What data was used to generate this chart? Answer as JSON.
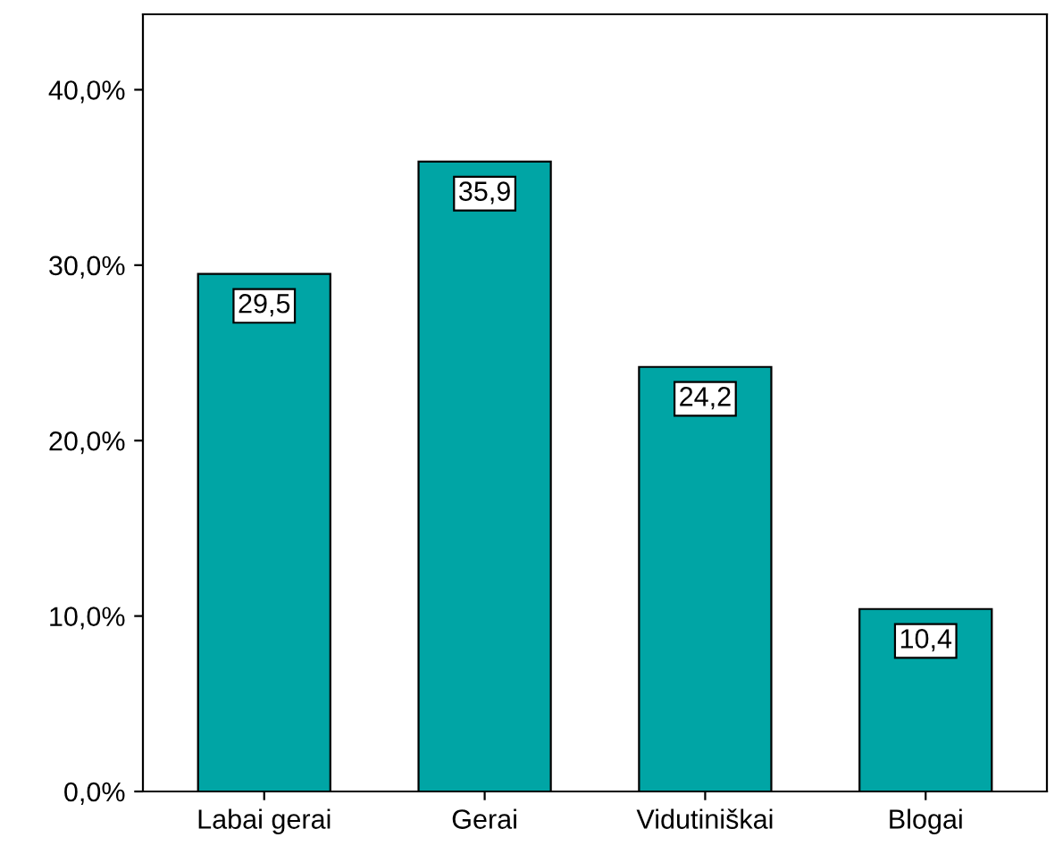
{
  "chart_data": {
    "type": "bar",
    "categories": [
      "Labai gerai",
      "Gerai",
      "Vidutiniškai",
      "Blogai"
    ],
    "values": [
      29.5,
      35.9,
      24.2,
      10.4
    ],
    "color": "#00a5a5",
    "value_labels": [
      "29,5",
      "35,9",
      "24,2",
      "10,4"
    ],
    "ylim": [
      0,
      44.3
    ],
    "yticks": [
      {
        "value": 0,
        "label": "0,0%"
      },
      {
        "value": 10,
        "label": "10,0%"
      },
      {
        "value": 20,
        "label": "20,0%"
      },
      {
        "value": 30,
        "label": "30,0%"
      },
      {
        "value": 40,
        "label": "40,0%"
      }
    ],
    "grid": false,
    "legend": false
  }
}
